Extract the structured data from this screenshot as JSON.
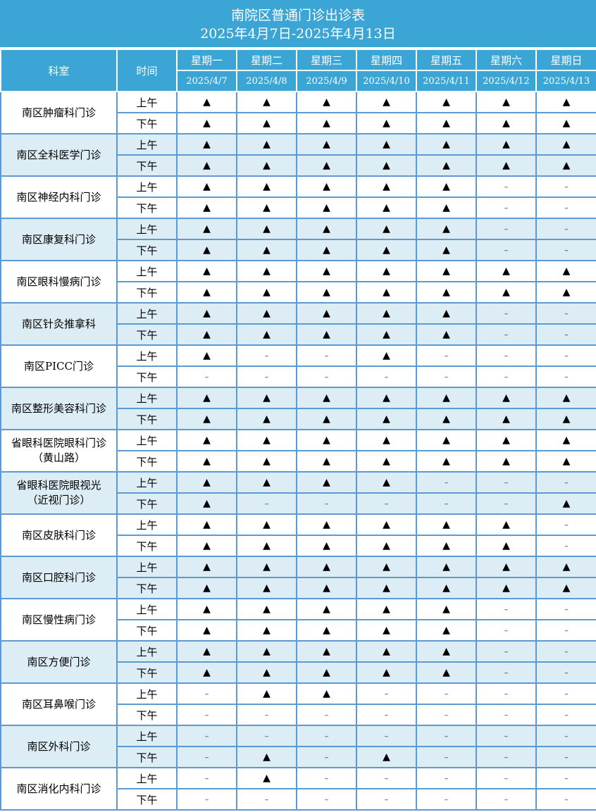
{
  "title": "南院区普通门诊出诊表",
  "subtitle": "2025年4月7日-2025年4月13日",
  "headers": {
    "dept": "科室",
    "time": "时间"
  },
  "days": [
    {
      "weekday": "星期一",
      "date": "2025/4/7"
    },
    {
      "weekday": "星期二",
      "date": "2025/4/8"
    },
    {
      "weekday": "星期三",
      "date": "2025/4/9"
    },
    {
      "weekday": "星期四",
      "date": "2025/4/10"
    },
    {
      "weekday": "星期五",
      "date": "2025/4/11"
    },
    {
      "weekday": "星期六",
      "date": "2025/4/12"
    },
    {
      "weekday": "星期日",
      "date": "2025/4/13"
    }
  ],
  "legend": {
    "open": "▲",
    "closed": "–"
  },
  "departments": [
    {
      "name": "南区肿瘤科门诊",
      "am_label": "上午",
      "pm_label": "下午",
      "am": [
        "▲",
        "▲",
        "▲",
        "▲",
        "▲",
        "▲",
        "▲"
      ],
      "pm": [
        "▲",
        "▲",
        "▲",
        "▲",
        "▲",
        "▲",
        "▲"
      ]
    },
    {
      "name": "南区全科医学门诊",
      "am_label": "上午",
      "pm_label": "下午",
      "am": [
        "▲",
        "▲",
        "▲",
        "▲",
        "▲",
        "▲",
        "▲"
      ],
      "pm": [
        "▲",
        "▲",
        "▲",
        "▲",
        "▲",
        "▲",
        "▲"
      ]
    },
    {
      "name": "南区神经内科门诊",
      "am_label": "上午",
      "pm_label": "下午",
      "am": [
        "▲",
        "▲",
        "▲",
        "▲",
        "▲",
        "–",
        "–"
      ],
      "pm": [
        "▲",
        "▲",
        "▲",
        "▲",
        "▲",
        "–",
        "–"
      ]
    },
    {
      "name": "南区康复科门诊",
      "am_label": "上午",
      "pm_label": "下午",
      "am": [
        "▲",
        "▲",
        "▲",
        "▲",
        "▲",
        "–",
        "–"
      ],
      "pm": [
        "▲",
        "▲",
        "▲",
        "▲",
        "▲",
        "–",
        "–"
      ]
    },
    {
      "name": "南区眼科慢病门诊",
      "am_label": "上午",
      "pm_label": "下午",
      "am": [
        "▲",
        "▲",
        "▲",
        "▲",
        "▲",
        "▲",
        "▲"
      ],
      "pm": [
        "▲",
        "▲",
        "▲",
        "▲",
        "▲",
        "▲",
        "▲"
      ]
    },
    {
      "name": "南区针灸推拿科",
      "am_label": "上午",
      "pm_label": "下午",
      "am": [
        "▲",
        "▲",
        "▲",
        "▲",
        "▲",
        "–",
        "–"
      ],
      "pm": [
        "▲",
        "▲",
        "▲",
        "▲",
        "▲",
        "–",
        "–"
      ]
    },
    {
      "name": "南区PICC门诊",
      "am_label": "上午",
      "pm_label": "下午",
      "am": [
        "▲",
        "–",
        "–",
        "▲",
        "–",
        "–",
        "–"
      ],
      "pm": [
        "–",
        "–",
        "–",
        "–",
        "–",
        "–",
        "–"
      ]
    },
    {
      "name": "南区整形美容科门诊",
      "am_label": "上午",
      "pm_label": "下午",
      "am": [
        "▲",
        "▲",
        "▲",
        "▲",
        "▲",
        "▲",
        "▲"
      ],
      "pm": [
        "▲",
        "▲",
        "▲",
        "▲",
        "▲",
        "▲",
        "▲"
      ]
    },
    {
      "name": "省眼科医院眼科门诊",
      "name2": "（黄山路）",
      "am_label": "上午",
      "pm_label": "下午",
      "am": [
        "▲",
        "▲",
        "▲",
        "▲",
        "▲",
        "▲",
        "▲"
      ],
      "pm": [
        "▲",
        "▲",
        "▲",
        "▲",
        "▲",
        "▲",
        "▲"
      ]
    },
    {
      "name": "省眼科医院眼视光",
      "name2": "（近视门诊）",
      "am_label": "上午",
      "pm_label": "下午",
      "am": [
        "▲",
        "▲",
        "▲",
        "▲",
        "–",
        "–",
        "–"
      ],
      "pm": [
        "▲",
        "–",
        "–",
        "–",
        "–",
        "–",
        "▲"
      ]
    },
    {
      "name": "南区皮肤科门诊",
      "am_label": "上午",
      "pm_label": "下午",
      "am": [
        "▲",
        "▲",
        "▲",
        "▲",
        "▲",
        "▲",
        "–"
      ],
      "pm": [
        "▲",
        "▲",
        "▲",
        "▲",
        "▲",
        "▲",
        "–"
      ]
    },
    {
      "name": "南区口腔科门诊",
      "am_label": "上午",
      "pm_label": "下午",
      "am": [
        "▲",
        "▲",
        "▲",
        "▲",
        "▲",
        "▲",
        "▲"
      ],
      "pm": [
        "▲",
        "▲",
        "▲",
        "▲",
        "▲",
        "▲",
        "▲"
      ]
    },
    {
      "name": "南区慢性病门诊",
      "am_label": "上午",
      "pm_label": "下午",
      "am": [
        "▲",
        "▲",
        "▲",
        "▲",
        "▲",
        "–",
        "–"
      ],
      "pm": [
        "▲",
        "▲",
        "▲",
        "▲",
        "▲",
        "–",
        "–"
      ]
    },
    {
      "name": "南区方便门诊",
      "am_label": "上午",
      "pm_label": "下午",
      "am": [
        "▲",
        "▲",
        "▲",
        "▲",
        "▲",
        "–",
        "–"
      ],
      "pm": [
        "▲",
        "▲",
        "▲",
        "▲",
        "▲",
        "–",
        "–"
      ]
    },
    {
      "name": "南区耳鼻喉门诊",
      "am_label": "上午",
      "pm_label": "下午",
      "am": [
        "–",
        "▲",
        "▲",
        "–",
        "–",
        "–",
        "–"
      ],
      "pm": [
        "–",
        "–",
        "–",
        "–",
        "–",
        "–",
        "–"
      ]
    },
    {
      "name": "南区外科门诊",
      "am_label": "上午",
      "pm_label": "下午",
      "am": [
        "–",
        "–",
        "–",
        "–",
        "–",
        "–",
        "–"
      ],
      "pm": [
        "–",
        "▲",
        "–",
        "▲",
        "–",
        "–",
        "–"
      ]
    },
    {
      "name": "南区消化内科门诊",
      "am_label": "上午",
      "pm_label": "下午",
      "am": [
        "–",
        "▲",
        "–",
        "–",
        "–",
        "–",
        "–"
      ],
      "pm": [
        "–",
        "–",
        "–",
        "–",
        "–",
        "–",
        "–"
      ]
    }
  ],
  "colors": {
    "header_bg": "#3ba5d5",
    "border": "#5b9bd5",
    "alt_row": "#ddedf6"
  }
}
